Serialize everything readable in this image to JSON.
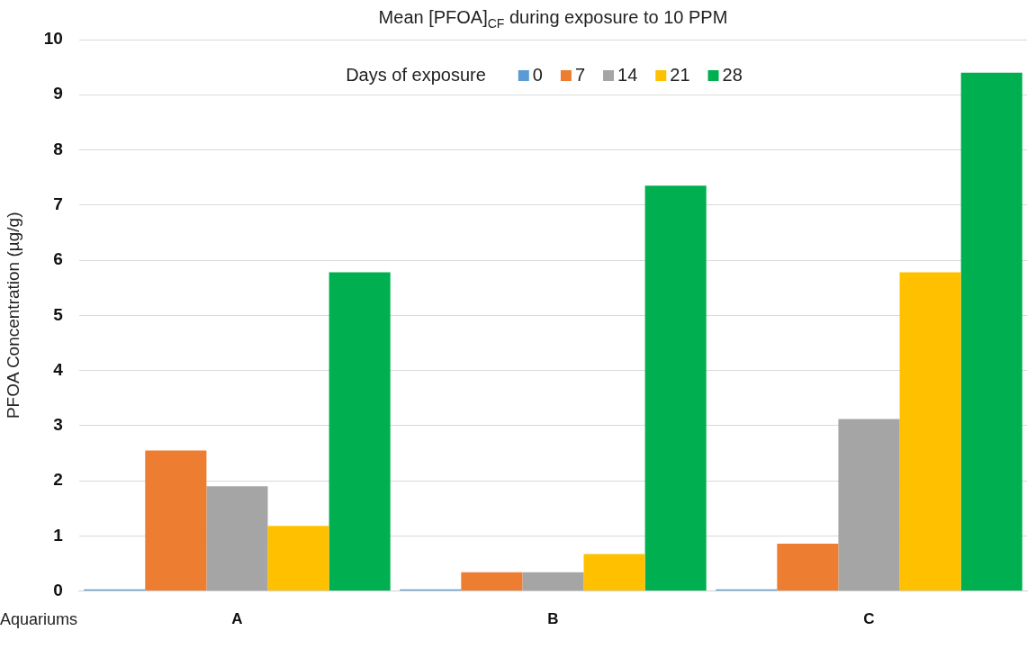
{
  "chart_data": {
    "type": "bar",
    "title": "Mean [PFOA]$_{CF}$ during exposure to 10 PPM",
    "xlabel": "Aquariums",
    "ylabel": "PFOA Concentration (µg/g)",
    "legend_title": "Days of exposure",
    "categories": [
      "A",
      "B",
      "C"
    ],
    "series": [
      {
        "name": "0",
        "color": "#5b9bd5",
        "values": [
          0.03,
          0.03,
          0.03
        ]
      },
      {
        "name": "7",
        "color": "#ed7d31",
        "values": [
          2.55,
          0.34,
          0.86
        ]
      },
      {
        "name": "14",
        "color": "#a5a5a5",
        "values": [
          1.9,
          0.34,
          3.12
        ]
      },
      {
        "name": "21",
        "color": "#ffc000",
        "values": [
          1.18,
          0.67,
          5.78
        ]
      },
      {
        "name": "28",
        "color": "#00b050",
        "values": [
          5.78,
          7.35,
          9.4
        ]
      }
    ],
    "ylim": [
      0,
      10
    ],
    "yticks": [
      0,
      1,
      2,
      3,
      4,
      5,
      6,
      7,
      8,
      9,
      10
    ],
    "grid": "y",
    "legend": "top"
  }
}
